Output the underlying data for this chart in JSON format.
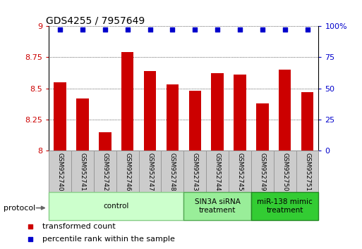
{
  "title": "GDS4255 / 7957649",
  "samples": [
    "GSM952740",
    "GSM952741",
    "GSM952742",
    "GSM952746",
    "GSM952747",
    "GSM952748",
    "GSM952743",
    "GSM952744",
    "GSM952745",
    "GSM952749",
    "GSM952750",
    "GSM952751"
  ],
  "bar_values": [
    8.55,
    8.42,
    8.15,
    8.79,
    8.64,
    8.53,
    8.48,
    8.62,
    8.61,
    8.38,
    8.65,
    8.47
  ],
  "percentile_values": [
    97,
    97,
    97,
    97,
    97,
    97,
    97,
    97,
    97,
    97,
    97,
    97
  ],
  "bar_color": "#cc0000",
  "dot_color": "#0000cc",
  "ylim_left": [
    8.0,
    9.0
  ],
  "ylim_right": [
    0,
    100
  ],
  "yticks_left": [
    8.0,
    8.25,
    8.5,
    8.75,
    9.0
  ],
  "yticks_right": [
    0,
    25,
    50,
    75,
    100
  ],
  "ytick_labels_left": [
    "8",
    "8.25",
    "8.5",
    "8.75",
    "9"
  ],
  "ytick_labels_right": [
    "0",
    "25",
    "50",
    "75",
    "100%"
  ],
  "groups": [
    {
      "label": "control",
      "start": 0,
      "end": 6,
      "color": "#ccffcc",
      "border": "#88cc88"
    },
    {
      "label": "SIN3A siRNA\ntreatment",
      "start": 6,
      "end": 9,
      "color": "#99ee99",
      "border": "#55aa55"
    },
    {
      "label": "miR-138 mimic\ntreatment",
      "start": 9,
      "end": 12,
      "color": "#33cc33",
      "border": "#228822"
    }
  ],
  "legend_items": [
    {
      "label": "transformed count",
      "color": "#cc0000",
      "marker": "s"
    },
    {
      "label": "percentile rank within the sample",
      "color": "#0000cc",
      "marker": "s"
    }
  ],
  "protocol_label": "protocol",
  "tick_label_color_left": "#cc0000",
  "tick_label_color_right": "#0000cc",
  "bar_width": 0.55,
  "sample_box_color": "#cccccc",
  "sample_box_edge": "#999999"
}
